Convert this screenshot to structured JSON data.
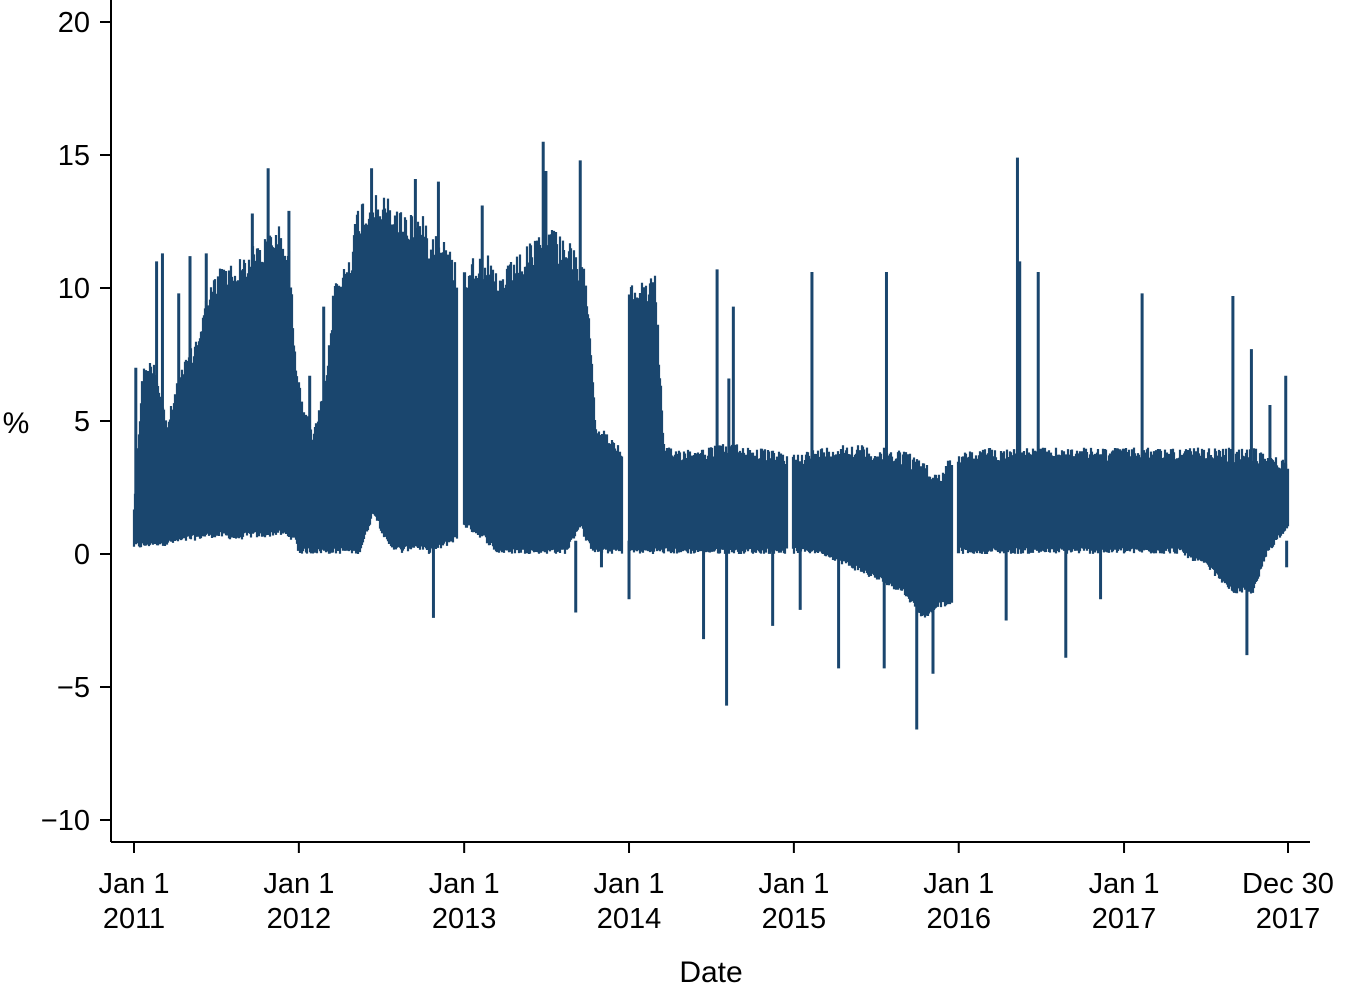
{
  "chart_data": {
    "type": "line",
    "title": "",
    "xlabel": "Date",
    "ylabel": "%",
    "color": "#1a466e",
    "ylim": [
      -10.8,
      20.8
    ],
    "xlim": [
      "2010-12-11",
      "2018-01-15"
    ],
    "yticks": [
      {
        "value": 20,
        "label": "20"
      },
      {
        "value": 15,
        "label": "15"
      },
      {
        "value": 10,
        "label": "10"
      },
      {
        "value": 5,
        "label": "5"
      },
      {
        "value": 0,
        "label": "0"
      },
      {
        "value": -5,
        "label": "−5"
      },
      {
        "value": -10,
        "label": "−10"
      }
    ],
    "xticks": [
      {
        "date": "2011-01-01",
        "line1": "Jan 1",
        "line2": "2011"
      },
      {
        "date": "2012-01-01",
        "line1": "Jan 1",
        "line2": "2012"
      },
      {
        "date": "2013-01-01",
        "line1": "Jan 1",
        "line2": "2013"
      },
      {
        "date": "2014-01-01",
        "line1": "Jan 1",
        "line2": "2014"
      },
      {
        "date": "2015-01-01",
        "line1": "Jan 1",
        "line2": "2015"
      },
      {
        "date": "2016-01-01",
        "line1": "Jan 1",
        "line2": "2016"
      },
      {
        "date": "2017-01-01",
        "line1": "Jan 1",
        "line2": "2017"
      },
      {
        "date": "2017-12-30",
        "line1": "Dec 30",
        "line2": "2017"
      }
    ],
    "grid": false,
    "legend": "none",
    "series": [
      {
        "name": "",
        "band_note_segments": [
          {
            "x": [
              "2011-01-01",
              "2011-01-20",
              "2011-02-15",
              "2011-03-15",
              "2011-04-15",
              "2011-05-15",
              "2011-06-15",
              "2011-07-15",
              "2011-08-15",
              "2011-09-15",
              "2011-10-15",
              "2011-11-15",
              "2011-12-10",
              "2011-12-31"
            ],
            "upper": [
              2.0,
              7.0,
              7.5,
              5.0,
              7.0,
              8.0,
              10.0,
              11.0,
              11.0,
              11.5,
              12.0,
              12.5,
              11.5,
              6.5
            ],
            "lower": [
              0.2,
              0.2,
              0.3,
              0.3,
              0.4,
              0.5,
              0.6,
              0.6,
              0.5,
              0.6,
              0.6,
              0.7,
              0.6,
              0.3
            ]
          },
          {
            "x": [
              "2012-01-01",
              "2012-02-01",
              "2012-03-01",
              "2012-03-20",
              "2012-04-15",
              "2012-05-15",
              "2012-06-15",
              "2012-07-15",
              "2012-08-15",
              "2012-09-15",
              "2012-10-15",
              "2012-11-15",
              "2012-12-15"
            ],
            "upper": [
              6.5,
              4.5,
              6.5,
              10.5,
              11.0,
              13.5,
              13.5,
              13.5,
              13.0,
              13.0,
              12.5,
              12.0,
              11.0
            ],
            "lower": [
              0.0,
              0.0,
              0.0,
              0.0,
              0.0,
              0.0,
              1.5,
              0.3,
              0.0,
              0.2,
              0.0,
              0.2,
              0.5
            ]
          },
          {
            "x": [
              "2013-01-01",
              "2013-02-15",
              "2013-03-15",
              "2013-04-15",
              "2013-05-15",
              "2013-06-15",
              "2013-07-15",
              "2013-08-15",
              "2013-09-15",
              "2013-10-01",
              "2013-10-20",
              "2013-11-15",
              "2013-12-15"
            ],
            "upper": [
              11.0,
              11.5,
              10.5,
              11.0,
              11.5,
              12.0,
              12.5,
              12.0,
              11.0,
              10.5,
              5.0,
              4.5,
              4.0
            ],
            "lower": [
              1.0,
              0.5,
              0.0,
              0.0,
              0.0,
              0.0,
              0.0,
              0.0,
              1.0,
              0.3,
              0.0,
              0.0,
              0.0
            ]
          },
          {
            "x": [
              "2014-01-01",
              "2014-02-01",
              "2014-03-01",
              "2014-03-20",
              "2014-04-15",
              "2014-06-15",
              "2014-08-15",
              "2014-10-15",
              "2014-12-15"
            ],
            "upper": [
              10.0,
              10.5,
              10.5,
              4.0,
              4.0,
              4.0,
              4.2,
              4.0,
              3.8
            ],
            "lower": [
              0.0,
              0.0,
              0.0,
              0.0,
              0.0,
              0.0,
              0.0,
              0.0,
              0.0
            ]
          },
          {
            "x": [
              "2015-01-01",
              "2015-03-01",
              "2015-05-01",
              "2015-07-01",
              "2015-09-01",
              "2015-10-15",
              "2015-11-15",
              "2015-12-15"
            ],
            "upper": [
              3.8,
              4.0,
              4.2,
              4.0,
              4.0,
              3.5,
              3.0,
              3.8
            ],
            "lower": [
              0.0,
              0.0,
              -0.5,
              -1.0,
              -1.5,
              -2.5,
              -2.0,
              -2.0
            ]
          },
          {
            "x": [
              "2016-01-01",
              "2016-03-01",
              "2016-05-01",
              "2016-07-01",
              "2016-09-01",
              "2016-11-01",
              "2016-12-31"
            ],
            "upper": [
              3.8,
              4.0,
              4.0,
              4.0,
              4.0,
              4.0,
              4.0
            ],
            "lower": [
              0.0,
              0.0,
              0.0,
              0.0,
              0.0,
              0.0,
              0.0
            ]
          },
          {
            "x": [
              "2017-01-01",
              "2017-03-01",
              "2017-05-01",
              "2017-07-01",
              "2017-09-01",
              "2017-10-15",
              "2017-11-15",
              "2017-12-30"
            ],
            "upper": [
              4.0,
              4.0,
              4.0,
              4.0,
              4.0,
              4.0,
              3.8,
              3.5
            ],
            "lower": [
              0.0,
              0.0,
              0.0,
              -0.5,
              -1.5,
              -1.5,
              0.0,
              1.0
            ]
          }
        ],
        "spikes": [
          {
            "x": "2011-01-05",
            "y": 7.0
          },
          {
            "x": "2011-02-20",
            "y": 11.0
          },
          {
            "x": "2011-03-05",
            "y": 11.3
          },
          {
            "x": "2011-04-10",
            "y": 9.8
          },
          {
            "x": "2011-05-05",
            "y": 11.2
          },
          {
            "x": "2011-06-10",
            "y": 11.3
          },
          {
            "x": "2011-09-20",
            "y": 12.8
          },
          {
            "x": "2011-10-25",
            "y": 14.5
          },
          {
            "x": "2011-12-10",
            "y": 12.9
          },
          {
            "x": "2012-01-25",
            "y": 6.7
          },
          {
            "x": "2012-02-25",
            "y": 9.3
          },
          {
            "x": "2012-06-10",
            "y": 14.5
          },
          {
            "x": "2012-09-15",
            "y": 14.1
          },
          {
            "x": "2012-11-05",
            "y": 14.0
          },
          {
            "x": "2012-10-25",
            "y": -2.4
          },
          {
            "x": "2013-02-10",
            "y": 13.1
          },
          {
            "x": "2013-06-25",
            "y": 15.5
          },
          {
            "x": "2013-07-01",
            "y": 14.4
          },
          {
            "x": "2013-09-15",
            "y": 14.8
          },
          {
            "x": "2013-09-05",
            "y": -2.2
          },
          {
            "x": "2013-11-01",
            "y": -0.5
          },
          {
            "x": "2014-01-01",
            "y": -1.7
          },
          {
            "x": "2014-06-15",
            "y": -3.2
          },
          {
            "x": "2014-07-15",
            "y": 10.7
          },
          {
            "x": "2014-08-05",
            "y": -5.7
          },
          {
            "x": "2014-08-10",
            "y": 6.6
          },
          {
            "x": "2014-08-20",
            "y": 9.3
          },
          {
            "x": "2014-11-15",
            "y": -2.7
          },
          {
            "x": "2015-01-15",
            "y": -2.1
          },
          {
            "x": "2015-02-10",
            "y": 10.6
          },
          {
            "x": "2015-04-10",
            "y": -4.3
          },
          {
            "x": "2015-07-20",
            "y": -4.3
          },
          {
            "x": "2015-07-25",
            "y": 10.6
          },
          {
            "x": "2015-09-30",
            "y": -6.6
          },
          {
            "x": "2015-11-05",
            "y": -4.5
          },
          {
            "x": "2016-04-15",
            "y": -2.5
          },
          {
            "x": "2016-05-10",
            "y": 14.9
          },
          {
            "x": "2016-05-15",
            "y": 11.0
          },
          {
            "x": "2016-06-25",
            "y": 10.6
          },
          {
            "x": "2016-08-25",
            "y": -3.9
          },
          {
            "x": "2016-11-10",
            "y": -1.7
          },
          {
            "x": "2017-02-10",
            "y": 9.8
          },
          {
            "x": "2017-08-30",
            "y": 9.7
          },
          {
            "x": "2017-09-30",
            "y": -3.8
          },
          {
            "x": "2017-10-10",
            "y": 7.7
          },
          {
            "x": "2017-11-20",
            "y": 5.6
          },
          {
            "x": "2017-12-25",
            "y": 6.7
          },
          {
            "x": "2017-12-27",
            "y": -0.5
          }
        ]
      }
    ]
  }
}
